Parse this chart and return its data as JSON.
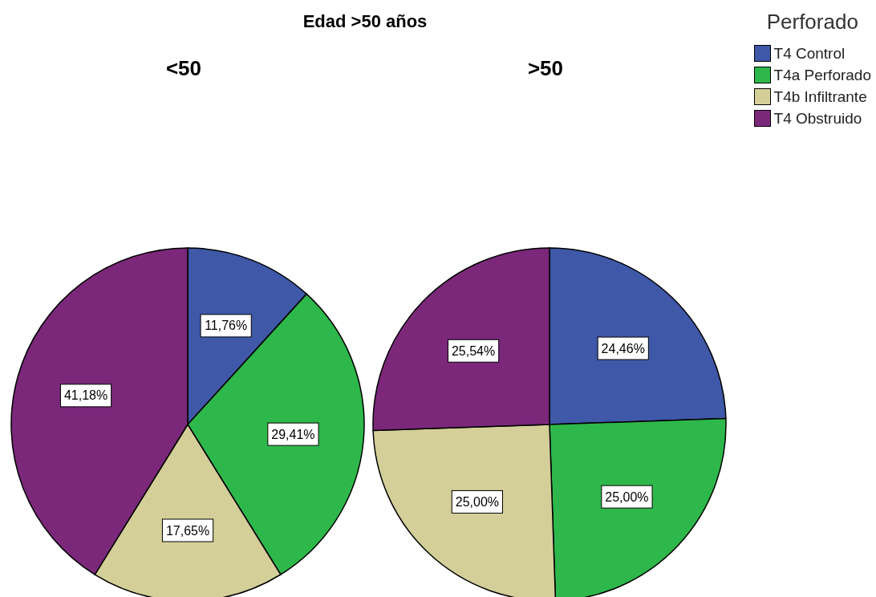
{
  "chart_data": [
    {
      "type": "pie",
      "title": "Edad >50 años",
      "subtitle": "<50",
      "categories": [
        null,
        null,
        null,
        null
      ],
      "values": [
        11.76,
        29.41,
        17.65,
        41.18
      ],
      "colors": [
        "#3f58a8",
        "#2eb84b",
        "#d4cf99",
        "#7b287a"
      ],
      "value_labels": [
        "11,76%",
        "29,41%",
        "17,65%",
        "41,18%"
      ],
      "legend": false
    },
    {
      "type": "pie",
      "subtitle": ">50",
      "categories": [
        "T4 Control",
        "T4a Perforado",
        "T4b Infiltrante",
        "T4 Obstruido"
      ],
      "values": [
        24.46,
        25.0,
        25.0,
        25.54
      ],
      "colors": [
        "#3f58a8",
        "#2eb84b",
        "#d4cf99",
        "#7b287a"
      ],
      "value_labels": [
        "24,46%",
        "25,00%",
        "25,00%",
        "25,54%"
      ],
      "legend": "top right",
      "legend_title": "Perforado"
    }
  ]
}
